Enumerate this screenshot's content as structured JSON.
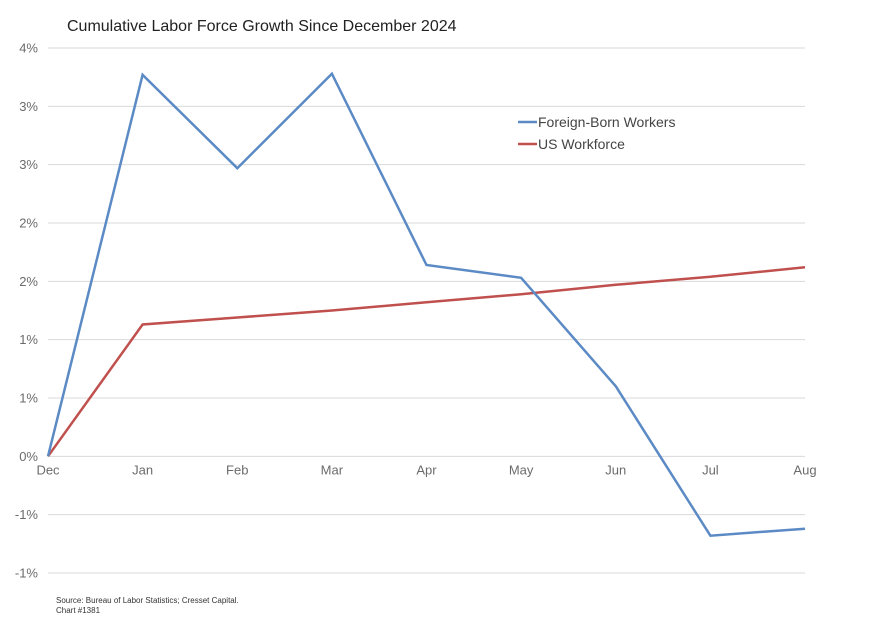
{
  "chart_data": {
    "type": "line",
    "title": "Cumulative Labor Force Growth Since December 2024",
    "xlabel": "",
    "ylabel": "",
    "categories": [
      "Dec",
      "Jan",
      "Feb",
      "Mar",
      "Apr",
      "May",
      "Jun",
      "Jul",
      "Aug"
    ],
    "y_ticks": [
      {
        "value": 3.5,
        "label": "4%"
      },
      {
        "value": 3.0,
        "label": "3%"
      },
      {
        "value": 2.5,
        "label": "3%"
      },
      {
        "value": 2.0,
        "label": "2%"
      },
      {
        "value": 1.5,
        "label": "2%"
      },
      {
        "value": 1.0,
        "label": "1%"
      },
      {
        "value": 0.5,
        "label": "1%"
      },
      {
        "value": 0.0,
        "label": "0%"
      },
      {
        "value": -0.5,
        "label": "-1%"
      },
      {
        "value": -1.0,
        "label": "-1%"
      }
    ],
    "ylim": [
      -1.0,
      3.5
    ],
    "grid": true,
    "legend_position": "top-right",
    "series": [
      {
        "name": "Foreign-Born Workers",
        "color": "#5b8ac5",
        "values": [
          0.0,
          3.27,
          2.47,
          3.28,
          1.64,
          1.53,
          0.6,
          -0.68,
          -0.62
        ]
      },
      {
        "name": "US Workforce",
        "color": "#c0504d",
        "values": [
          0.0,
          1.13,
          1.19,
          1.25,
          1.32,
          1.39,
          1.47,
          1.54,
          1.62
        ]
      }
    ]
  },
  "footer": {
    "source": "Source: Bureau of Labor Statistics; Cresset Capital.",
    "chart_id": "Chart #1381"
  }
}
